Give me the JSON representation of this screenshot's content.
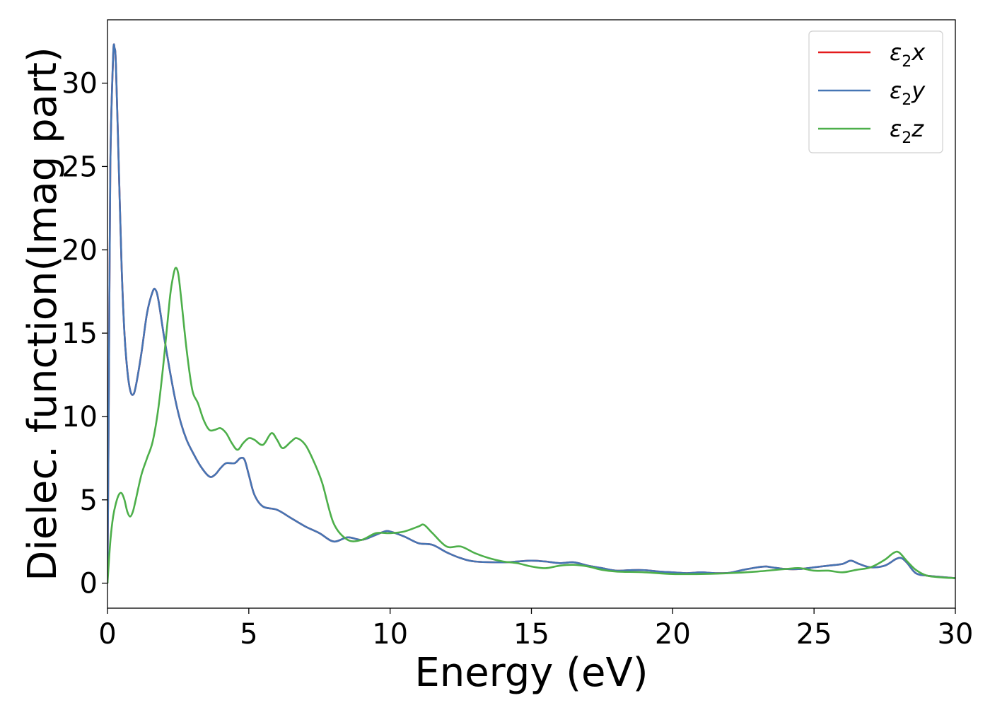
{
  "chart_data": {
    "type": "line",
    "title": "",
    "xlabel": "Energy (eV)",
    "ylabel": "Dielec. function(Imag part)",
    "xlim": [
      0,
      30
    ],
    "ylim": [
      -1.5,
      33.8
    ],
    "xticks": [
      0,
      5,
      10,
      15,
      20,
      25,
      30
    ],
    "yticks": [
      0,
      5,
      10,
      15,
      20,
      25,
      30
    ],
    "xtick_labels": [
      "0",
      "5",
      "10",
      "15",
      "20",
      "25",
      "30"
    ],
    "ytick_labels": [
      "0",
      "5",
      "10",
      "15",
      "20",
      "25",
      "30"
    ],
    "grid": false,
    "legend_position": "top-right",
    "series": [
      {
        "name": "ε2x",
        "legend_base": "ε",
        "legend_sub": "2",
        "legend_suffix": "x",
        "color": "#e41a1c",
        "x": [
          0,
          0.05,
          0.1,
          0.2,
          0.25,
          0.3,
          0.4,
          0.5,
          0.6,
          0.7,
          0.8,
          0.9,
          1.0,
          1.2,
          1.4,
          1.6,
          1.7,
          1.8,
          2.0,
          2.2,
          2.4,
          2.6,
          2.8,
          3.0,
          3.3,
          3.6,
          3.8,
          4.0,
          4.2,
          4.5,
          4.7,
          4.85,
          5.0,
          5.2,
          5.5,
          6.0,
          6.5,
          7.0,
          7.5,
          8.0,
          8.5,
          9.0,
          9.5,
          9.8,
          10.0,
          10.5,
          11.0,
          11.5,
          12.0,
          12.5,
          13.0,
          14.0,
          14.5,
          15.0,
          15.5,
          16.0,
          16.5,
          17.0,
          17.5,
          18.0,
          18.5,
          19.0,
          19.5,
          20.0,
          20.5,
          21.0,
          21.5,
          22.0,
          22.5,
          23.0,
          23.3,
          23.5,
          24.0,
          24.5,
          25.0,
          25.5,
          26.0,
          26.3,
          26.6,
          27.0,
          27.5,
          27.9,
          28.1,
          28.3,
          28.6,
          29.0,
          29.5,
          30.0
        ],
        "y": [
          0,
          12,
          25,
          31.6,
          32.1,
          31.0,
          25.0,
          19.0,
          15.0,
          12.8,
          11.6,
          11.3,
          11.8,
          13.8,
          16.2,
          17.5,
          17.6,
          17.0,
          14.8,
          12.8,
          11.0,
          9.6,
          8.6,
          7.9,
          7.0,
          6.4,
          6.5,
          6.9,
          7.2,
          7.2,
          7.5,
          7.4,
          6.5,
          5.3,
          4.6,
          4.4,
          3.9,
          3.4,
          3.0,
          2.5,
          2.75,
          2.6,
          2.9,
          3.1,
          3.1,
          2.8,
          2.4,
          2.3,
          1.85,
          1.5,
          1.3,
          1.25,
          1.3,
          1.35,
          1.3,
          1.2,
          1.25,
          1.05,
          0.9,
          0.75,
          0.78,
          0.78,
          0.7,
          0.65,
          0.6,
          0.65,
          0.6,
          0.62,
          0.8,
          0.95,
          1.0,
          0.95,
          0.85,
          0.85,
          0.95,
          1.05,
          1.15,
          1.35,
          1.15,
          0.95,
          1.05,
          1.45,
          1.5,
          1.2,
          0.6,
          0.45,
          0.37,
          0.3
        ]
      },
      {
        "name": "ε2y",
        "legend_base": "ε",
        "legend_sub": "2",
        "legend_suffix": "y",
        "color": "#4575b4",
        "x": [
          0,
          0.05,
          0.1,
          0.2,
          0.25,
          0.3,
          0.4,
          0.5,
          0.6,
          0.7,
          0.8,
          0.9,
          1.0,
          1.2,
          1.4,
          1.6,
          1.7,
          1.8,
          2.0,
          2.2,
          2.4,
          2.6,
          2.8,
          3.0,
          3.3,
          3.6,
          3.8,
          4.0,
          4.2,
          4.5,
          4.7,
          4.85,
          5.0,
          5.2,
          5.5,
          6.0,
          6.5,
          7.0,
          7.5,
          8.0,
          8.5,
          9.0,
          9.5,
          9.8,
          10.0,
          10.5,
          11.0,
          11.5,
          12.0,
          12.5,
          13.0,
          14.0,
          14.5,
          15.0,
          15.5,
          16.0,
          16.5,
          17.0,
          17.5,
          18.0,
          18.5,
          19.0,
          19.5,
          20.0,
          20.5,
          21.0,
          21.5,
          22.0,
          22.5,
          23.0,
          23.3,
          23.5,
          24.0,
          24.5,
          25.0,
          25.5,
          26.0,
          26.3,
          26.6,
          27.0,
          27.5,
          27.9,
          28.1,
          28.3,
          28.6,
          29.0,
          29.5,
          30.0
        ],
        "y": [
          0,
          12,
          25,
          31.6,
          32.1,
          31.0,
          25.0,
          19.0,
          15.0,
          12.8,
          11.6,
          11.3,
          11.8,
          13.8,
          16.2,
          17.5,
          17.6,
          17.0,
          14.8,
          12.8,
          11.0,
          9.6,
          8.6,
          7.9,
          7.0,
          6.4,
          6.5,
          6.9,
          7.2,
          7.2,
          7.5,
          7.4,
          6.5,
          5.3,
          4.6,
          4.4,
          3.9,
          3.4,
          3.0,
          2.5,
          2.75,
          2.6,
          2.9,
          3.1,
          3.1,
          2.8,
          2.4,
          2.3,
          1.85,
          1.5,
          1.3,
          1.25,
          1.3,
          1.35,
          1.3,
          1.2,
          1.25,
          1.05,
          0.9,
          0.75,
          0.78,
          0.78,
          0.7,
          0.65,
          0.6,
          0.65,
          0.6,
          0.62,
          0.8,
          0.95,
          1.0,
          0.95,
          0.85,
          0.85,
          0.95,
          1.05,
          1.15,
          1.35,
          1.15,
          0.95,
          1.05,
          1.45,
          1.5,
          1.2,
          0.6,
          0.45,
          0.37,
          0.3
        ]
      },
      {
        "name": "ε2z",
        "legend_base": "ε",
        "legend_sub": "2",
        "legend_suffix": "z",
        "color": "#4daf4a",
        "x": [
          0,
          0.1,
          0.2,
          0.3,
          0.4,
          0.5,
          0.6,
          0.7,
          0.8,
          0.9,
          1.0,
          1.2,
          1.4,
          1.6,
          1.8,
          2.0,
          2.2,
          2.3,
          2.4,
          2.5,
          2.6,
          2.8,
          3.0,
          3.2,
          3.4,
          3.6,
          3.8,
          4.0,
          4.2,
          4.4,
          4.6,
          4.8,
          5.0,
          5.2,
          5.5,
          5.8,
          6.0,
          6.2,
          6.5,
          6.7,
          7.0,
          7.3,
          7.6,
          8.0,
          8.5,
          9.0,
          9.5,
          10.0,
          10.5,
          11.0,
          11.2,
          11.5,
          12.0,
          12.5,
          13.0,
          13.5,
          14.0,
          14.5,
          15.0,
          15.5,
          16.0,
          16.5,
          17.0,
          17.5,
          18.0,
          19.0,
          20.0,
          21.0,
          22.0,
          23.0,
          24.0,
          24.5,
          25.0,
          25.5,
          26.0,
          26.5,
          27.0,
          27.5,
          27.8,
          28.0,
          28.3,
          28.6,
          29.0,
          29.5,
          30.0
        ],
        "y": [
          0,
          2.5,
          4.0,
          4.8,
          5.3,
          5.4,
          5.0,
          4.3,
          4.0,
          4.3,
          5.0,
          6.5,
          7.5,
          8.5,
          10.5,
          13.5,
          17.0,
          18.2,
          18.9,
          18.6,
          17.2,
          14.0,
          11.6,
          10.8,
          9.8,
          9.2,
          9.2,
          9.3,
          9.0,
          8.4,
          8.0,
          8.4,
          8.7,
          8.6,
          8.3,
          9.0,
          8.6,
          8.1,
          8.5,
          8.7,
          8.3,
          7.3,
          6.0,
          3.6,
          2.6,
          2.6,
          3.0,
          3.0,
          3.1,
          3.4,
          3.5,
          3.0,
          2.2,
          2.2,
          1.8,
          1.5,
          1.3,
          1.2,
          1.0,
          0.9,
          1.05,
          1.1,
          1.0,
          0.8,
          0.7,
          0.65,
          0.55,
          0.55,
          0.6,
          0.7,
          0.85,
          0.9,
          0.75,
          0.75,
          0.65,
          0.8,
          0.95,
          1.4,
          1.8,
          1.85,
          1.3,
          0.8,
          0.45,
          0.35,
          0.3
        ]
      }
    ]
  }
}
